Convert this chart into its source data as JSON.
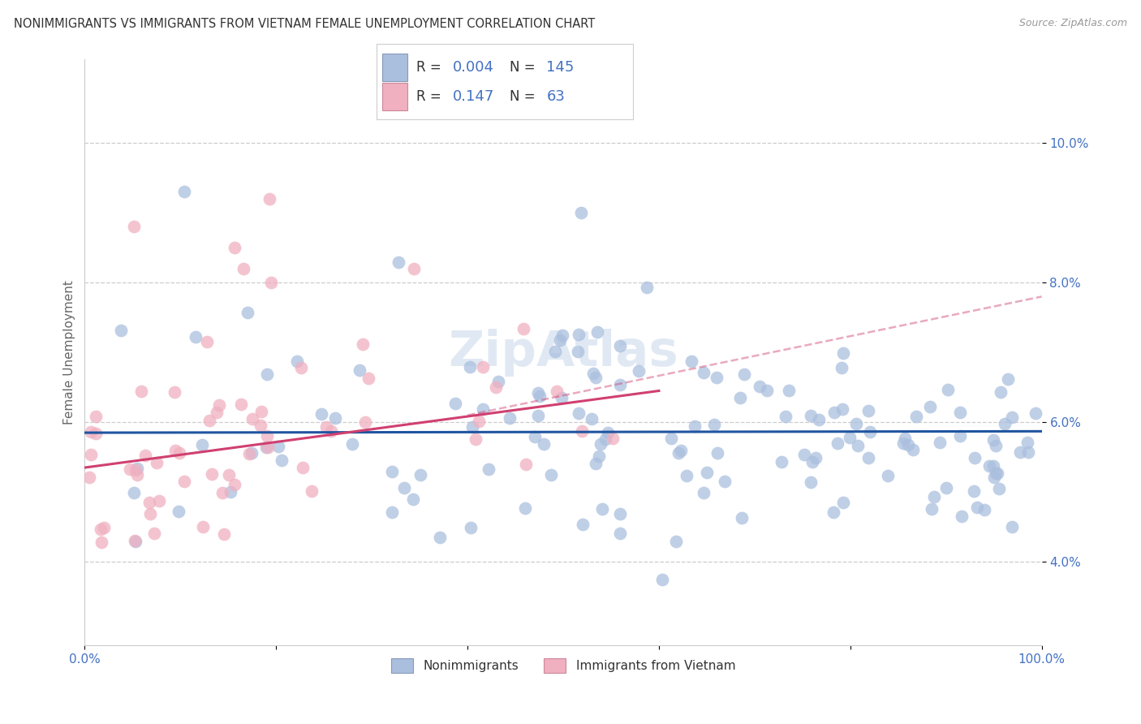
{
  "title": "NONIMMIGRANTS VS IMMIGRANTS FROM VIETNAM FEMALE UNEMPLOYMENT CORRELATION CHART",
  "source": "Source: ZipAtlas.com",
  "ylabel": "Female Unemployment",
  "xlim": [
    0.0,
    100.0
  ],
  "ylim": [
    2.8,
    11.2
  ],
  "y_tick_values": [
    4.0,
    6.0,
    8.0,
    10.0
  ],
  "y_tick_labels": [
    "4.0%",
    "6.0%",
    "8.0%",
    "10.0%"
  ],
  "watermark": "ZipAtlas",
  "background_color": "#ffffff",
  "grid_color": "#cccccc",
  "title_color": "#333333",
  "tick_color": "#4472c4",
  "nonimmigrant_color": "#aabfde",
  "immigrant_color": "#f0b0c0",
  "nonimmigrant_line_color": "#2055a0",
  "immigrant_line_color": "#d04070",
  "trend_nonimm_x0": 0,
  "trend_nonimm_x1": 100,
  "trend_nonimm_y0": 5.85,
  "trend_nonimm_y1": 5.87,
  "trend_imm_x0": 0,
  "trend_imm_x1": 60,
  "trend_imm_y0": 5.35,
  "trend_imm_y1": 6.45,
  "dashed_x0": 40,
  "dashed_x1": 100,
  "dashed_y0": 6.1,
  "dashed_y1": 7.8,
  "legend_R1": "0.004",
  "legend_N1": "145",
  "legend_R2": "0.147",
  "legend_N2": "63",
  "legend_label1": "Nonimmigrants",
  "legend_label2": "Immigrants from Vietnam"
}
